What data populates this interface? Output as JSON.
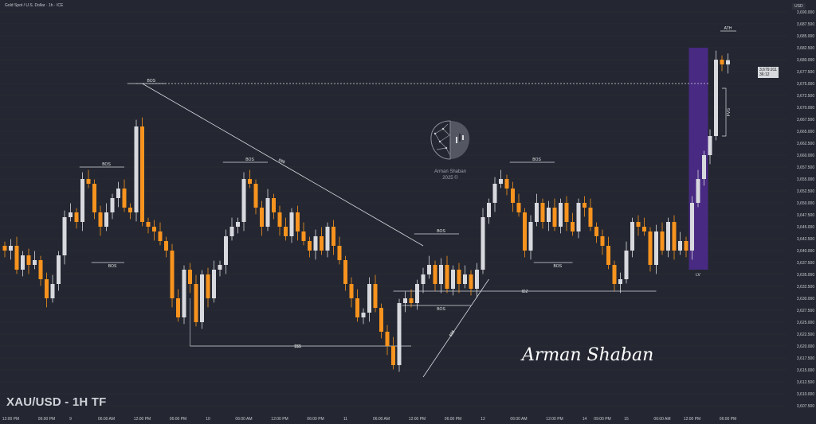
{
  "header": {
    "symbol_line": "Gold Spot / U.S. Dollar · 1h · ICE",
    "currency": "USD"
  },
  "title": "XAU/USD - 1H TF",
  "watermark": {
    "name": "Arman Shaban",
    "year": "2025 ©"
  },
  "signature": "Arman Shaban",
  "current_price": {
    "value": "3,679.911",
    "countdown": "36:12"
  },
  "colors": {
    "background": "#242731",
    "up": "#d7d9de",
    "down": "#f7931e",
    "zone": "#4b2a87",
    "grid": "#2b2e38"
  },
  "chart_data": {
    "type": "candlestick",
    "y_axis": {
      "min": 3607.5,
      "max": 3690.0,
      "step": 2.5,
      "tick_labels": [
        "3,690.000",
        "3,687.500",
        "3,685.000",
        "3,682.500",
        "3,680.000",
        "3,677.500",
        "3,675.000",
        "3,672.500",
        "3,670.000",
        "3,667.500",
        "3,665.000",
        "3,662.500",
        "3,660.000",
        "3,657.500",
        "3,655.000",
        "3,652.500",
        "3,650.000",
        "3,647.500",
        "3,645.000",
        "3,642.500",
        "3,640.000",
        "3,637.500",
        "3,635.000",
        "3,632.500",
        "3,630.000",
        "3,627.500",
        "3,625.000",
        "3,622.500",
        "3,620.000",
        "3,617.500",
        "3,615.000",
        "3,612.500",
        "3,610.000",
        "3,607.500"
      ]
    },
    "x_axis": {
      "tick_labels": [
        "12:00 PM",
        "06:00 PM",
        "9",
        "06:00 AM",
        "12:00 PM",
        "06:00 PM",
        "10",
        "06:00 AM",
        "12:00 PM",
        "06:00 PM",
        "11",
        "06:00 AM",
        "12:00 PM",
        "06:00 PM",
        "12",
        "06:00 AM",
        "12:00 PM",
        "14",
        "09:00 PM",
        "15",
        "06:00 AM",
        "12:00 PM",
        "06:00 PM"
      ],
      "tick_bar_index": [
        1,
        7,
        11,
        17,
        23,
        29,
        34,
        40,
        46,
        52,
        57,
        63,
        69,
        75,
        80,
        86,
        92,
        97,
        100,
        104,
        110,
        115,
        121
      ]
    },
    "candles": [
      [
        3641.0,
        3640.0
      ],
      [
        3640.0,
        3641.0
      ],
      [
        3641.0,
        3636.0
      ],
      [
        3636.0,
        3639.0
      ],
      [
        3639.0,
        3637.0
      ],
      [
        3637.0,
        3638.0
      ],
      [
        3638.0,
        3634.0
      ],
      [
        3634.0,
        3630.0
      ],
      [
        3630.0,
        3633.0
      ],
      [
        3633.0,
        3639.0
      ],
      [
        3639.0,
        3647.0
      ],
      [
        3647.0,
        3648.0
      ],
      [
        3648.0,
        3646.0
      ],
      [
        3646.0,
        3655.0
      ],
      [
        3655.0,
        3654.0
      ],
      [
        3654.0,
        3648.0
      ],
      [
        3648.0,
        3645.0
      ],
      [
        3645.0,
        3648.0
      ],
      [
        3648.0,
        3651.0
      ],
      [
        3651.0,
        3653.0
      ],
      [
        3653.0,
        3649.0
      ],
      [
        3649.0,
        3648.0
      ],
      [
        3648.0,
        3666.0
      ],
      [
        3666.0,
        3646.0
      ],
      [
        3646.0,
        3645.0
      ],
      [
        3645.0,
        3644.0
      ],
      [
        3644.0,
        3642.0
      ],
      [
        3642.0,
        3640.0
      ],
      [
        3640.0,
        3630.0
      ],
      [
        3630.0,
        3626.0
      ],
      [
        3626.0,
        3636.0
      ],
      [
        3636.0,
        3633.0
      ],
      [
        3633.0,
        3625.0
      ],
      [
        3625.0,
        3635.0
      ],
      [
        3635.0,
        3630.0
      ],
      [
        3630.0,
        3636.0
      ],
      [
        3636.0,
        3637.0
      ],
      [
        3637.0,
        3643.0
      ],
      [
        3643.0,
        3645.0
      ],
      [
        3645.0,
        3646.0
      ],
      [
        3646.0,
        3655.0
      ],
      [
        3655.0,
        3654.0
      ],
      [
        3654.0,
        3649.0
      ],
      [
        3649.0,
        3645.0
      ],
      [
        3645.0,
        3651.0
      ],
      [
        3651.0,
        3648.0
      ],
      [
        3648.0,
        3645.0
      ],
      [
        3645.0,
        3643.0
      ],
      [
        3643.0,
        3648.0
      ],
      [
        3648.0,
        3644.0
      ],
      [
        3644.0,
        3642.0
      ],
      [
        3642.0,
        3640.0
      ],
      [
        3640.0,
        3643.0
      ],
      [
        3643.0,
        3640.0
      ],
      [
        3640.0,
        3645.0
      ],
      [
        3645.0,
        3641.0
      ],
      [
        3641.0,
        3638.0
      ],
      [
        3638.0,
        3633.0
      ],
      [
        3633.0,
        3630.0
      ],
      [
        3630.0,
        3626.0
      ],
      [
        3626.0,
        3627.0
      ],
      [
        3627.0,
        3633.0
      ],
      [
        3633.0,
        3628.0
      ],
      [
        3628.0,
        3623.0
      ],
      [
        3623.0,
        3620.0
      ],
      [
        3620.0,
        3616.0
      ],
      [
        3616.0,
        3629.0
      ],
      [
        3629.0,
        3630.0
      ],
      [
        3630.0,
        3629.0
      ],
      [
        3629.0,
        3633.0
      ],
      [
        3633.0,
        3635.0
      ],
      [
        3635.0,
        3637.0
      ],
      [
        3637.0,
        3633.0
      ],
      [
        3633.0,
        3637.0
      ],
      [
        3637.0,
        3632.0
      ],
      [
        3632.0,
        3636.0
      ],
      [
        3636.0,
        3633.0
      ],
      [
        3633.0,
        3635.0
      ],
      [
        3635.0,
        3632.0
      ],
      [
        3632.0,
        3636.0
      ],
      [
        3636.0,
        3647.0
      ],
      [
        3647.0,
        3650.0
      ],
      [
        3650.0,
        3654.0
      ],
      [
        3654.0,
        3655.0
      ],
      [
        3655.0,
        3653.0
      ],
      [
        3653.0,
        3650.0
      ],
      [
        3650.0,
        3648.0
      ],
      [
        3648.0,
        3640.0
      ],
      [
        3640.0,
        3646.0
      ],
      [
        3646.0,
        3650.0
      ],
      [
        3650.0,
        3646.0
      ],
      [
        3646.0,
        3649.0
      ],
      [
        3649.0,
        3645.0
      ],
      [
        3645.0,
        3650.0
      ],
      [
        3650.0,
        3646.0
      ],
      [
        3646.0,
        3644.0
      ],
      [
        3644.0,
        3650.0
      ],
      [
        3650.0,
        3649.0
      ],
      [
        3649.0,
        3645.0
      ],
      [
        3645.0,
        3643.0
      ],
      [
        3643.0,
        3641.0
      ],
      [
        3641.0,
        3637.0
      ],
      [
        3637.0,
        3633.0
      ],
      [
        3633.0,
        3634.0
      ],
      [
        3634.0,
        3640.0
      ],
      [
        3640.0,
        3646.0
      ],
      [
        3646.0,
        3645.0
      ],
      [
        3645.0,
        3644.0
      ],
      [
        3644.0,
        3637.0
      ],
      [
        3637.0,
        3644.0
      ],
      [
        3644.0,
        3640.0
      ],
      [
        3640.0,
        3646.0
      ],
      [
        3646.0,
        3640.0
      ],
      [
        3640.0,
        3642.0
      ],
      [
        3642.0,
        3640.0
      ],
      [
        3640.0,
        3650.0
      ],
      [
        3650.0,
        3655.0
      ],
      [
        3655.0,
        3660.0
      ],
      [
        3660.0,
        3664.0
      ],
      [
        3664.0,
        3680.0
      ],
      [
        3680.0,
        3679.0
      ],
      [
        3679.0,
        3679.9
      ]
    ],
    "annotations": {
      "bos_labels": [
        "BOS",
        "BOS",
        "BOS",
        "BOS",
        "BOS",
        "BOS",
        "BOS",
        "BOS"
      ],
      "liquidity_labels": [
        "$$$",
        "$$$",
        "$$$"
      ],
      "idz": "IDZ",
      "fvg": "FVG",
      "ath": "ATH",
      "lv": "LV",
      "levels": {
        "dotted_resistance": 3675.0,
        "idz_level": 3631.5,
        "ath_level": 3686.0,
        "fvg_top": 3674.0,
        "fvg_bottom": 3664.0
      }
    }
  }
}
